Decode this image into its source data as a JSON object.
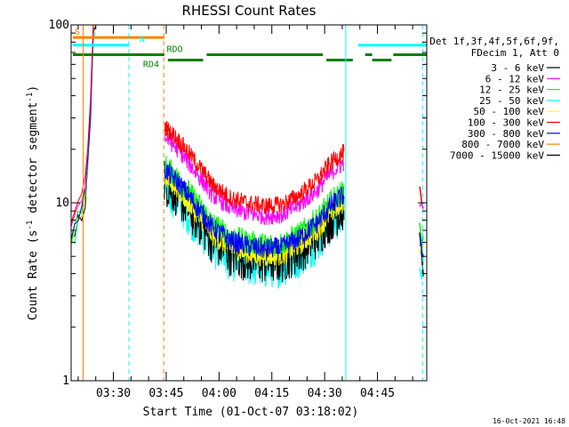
{
  "chart_data": {
    "type": "line",
    "title": "RHESSI Count Rates",
    "xlabel": "Start Time (01-Oct-07 03:18:02)",
    "ylabel_parts": [
      "Count Rate (s",
      "-1",
      " detector segment",
      "-1",
      ")"
    ],
    "ylabel": "Count Rate (s-1 detector segment-1)",
    "yscale": "log",
    "ylim": [
      1,
      100
    ],
    "xlim_minutes": [
      0,
      101
    ],
    "y_ticks": [
      {
        "value": 1,
        "label": "1"
      },
      {
        "value": 10,
        "label": "10"
      },
      {
        "value": 100,
        "label": "100"
      }
    ],
    "x_ticks": [
      {
        "minute": 12,
        "label": "03:30"
      },
      {
        "minute": 27,
        "label": "03:45"
      },
      {
        "minute": 42,
        "label": "04:00"
      },
      {
        "minute": 57,
        "label": "04:15"
      },
      {
        "minute": 72,
        "label": "04:30"
      },
      {
        "minute": 87,
        "label": "04:45"
      }
    ],
    "legend_header": [
      "Det 1f,3f,4f,5f,6f,9f,",
      "FDecim 1, Att 0"
    ],
    "series": [
      {
        "name": "3 - 6 keV",
        "color": "#000000",
        "scale": 0.93,
        "jitter": 0.13
      },
      {
        "name": "6 - 12 keV",
        "color": "#ff00ff",
        "scale": 1.68,
        "jitter": 0.05
      },
      {
        "name": "12 - 25 keV",
        "color": "#00ff00",
        "scale": 1.16,
        "jitter": 0.07
      },
      {
        "name": "25 - 50 keV",
        "color": "#00ffff",
        "scale": 0.86,
        "jitter": 0.12
      },
      {
        "name": "50 - 100 keV",
        "color": "#ffff00",
        "scale": 1.0,
        "jitter": 0.06
      },
      {
        "name": "100 - 300 keV",
        "color": "#ff0000",
        "scale": 1.92,
        "jitter": 0.05
      },
      {
        "name": "300 - 800 keV",
        "color": "#0000ff",
        "scale": 1.1,
        "jitter": 0.06
      },
      {
        "name": "800 - 7000 keV",
        "color": "#ff8000",
        "scale": 0.98,
        "jitter": 0.07
      },
      {
        "name": "7000 - 15000 keV",
        "color": "#000000",
        "scale": 0.0,
        "jitter": 0.0
      }
    ],
    "base_profile": [
      {
        "minute": 26.5,
        "value": 14.0
      },
      {
        "minute": 30.0,
        "value": 12.0
      },
      {
        "minute": 35.0,
        "value": 9.0
      },
      {
        "minute": 40.0,
        "value": 6.6
      },
      {
        "minute": 45.0,
        "value": 5.6
      },
      {
        "minute": 50.0,
        "value": 5.2
      },
      {
        "minute": 55.0,
        "value": 5.0
      },
      {
        "minute": 60.0,
        "value": 5.1
      },
      {
        "minute": 65.0,
        "value": 5.8
      },
      {
        "minute": 70.0,
        "value": 7.0
      },
      {
        "minute": 73.0,
        "value": 8.4
      },
      {
        "minute": 75.0,
        "value": 9.2
      },
      {
        "minute": 77.5,
        "value": 10.0
      }
    ],
    "early_segment": {
      "minutes": [
        0.0,
        1.0,
        2.0,
        3.0,
        4.0,
        4.7,
        5.5,
        6.3,
        6.9
      ],
      "values": [
        6.0,
        7.0,
        8.0,
        9.0,
        11.0,
        16.0,
        30.0,
        90.0,
        100.0
      ]
    },
    "late_segment": {
      "minutes": [
        99.0,
        99.6,
        100.0
      ],
      "values": [
        6.0,
        5.6,
        5.0
      ]
    },
    "state_bars": [
      {
        "label": "S",
        "color": "#ff8000",
        "y_value": 85.0,
        "start": 0.5,
        "end": 26.5
      },
      {
        "label": "N",
        "color": "#00ffff",
        "y_value": 77.0,
        "start": 0.5,
        "end": 16.5
      },
      {
        "label": "",
        "color": "#00ffff",
        "y_value": 77.0,
        "start": 81.5,
        "end": 101.0
      },
      {
        "label": "",
        "color": "#008000",
        "y_value": 68.0,
        "start": 0.5,
        "end": 26.5
      },
      {
        "label": "RDO",
        "color": "#008000",
        "y_value": 68.0,
        "start": 38.5,
        "end": 71.5
      },
      {
        "label": "",
        "color": "#008000",
        "y_value": 68.0,
        "start": 83.5,
        "end": 85.5
      },
      {
        "label": "",
        "color": "#008000",
        "y_value": 68.0,
        "start": 91.5,
        "end": 101.0
      },
      {
        "label": "RD4",
        "color": "#008000",
        "y_value": 63.5,
        "start": 27.5,
        "end": 37.5
      },
      {
        "label": "",
        "color": "#008000",
        "y_value": 63.5,
        "start": 72.5,
        "end": 80.0
      },
      {
        "label": "",
        "color": "#008000",
        "y_value": 63.5,
        "start": 85.5,
        "end": 91.0
      }
    ],
    "markers": [
      {
        "kind": "solid",
        "color": "#00ffff",
        "minute": 0.0
      },
      {
        "kind": "solid",
        "color": "#ff8000",
        "minute": 3.4
      },
      {
        "kind": "dashed",
        "color": "#00ffff",
        "minute": 16.4
      },
      {
        "kind": "dashed",
        "color": "#ff8000",
        "minute": 26.3
      },
      {
        "kind": "solid",
        "color": "#00ffff",
        "minute": 78.0
      },
      {
        "kind": "dashed",
        "color": "#00ffff",
        "minute": 99.8
      }
    ]
  },
  "footer": {
    "timestamp": "16-Oct-2021 16:48"
  }
}
